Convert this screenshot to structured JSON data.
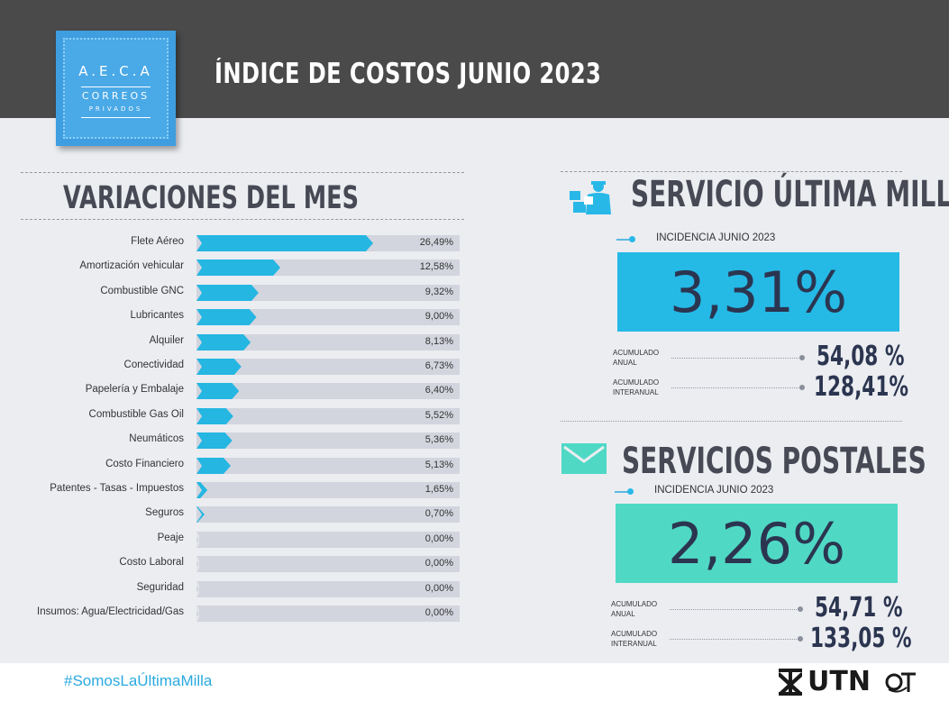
{
  "header": {
    "title": "ÍNDICE DE COSTOS JUNIO 2023",
    "logo": {
      "line1": "A.E.C.A",
      "line2": "CORREOS",
      "line3": "PRIVADOS"
    }
  },
  "variaciones": {
    "title": "VARIACIONES DEL MES",
    "rows": [
      {
        "label": "Flete Aéreo",
        "value": "26,49%",
        "pct": 26.49
      },
      {
        "label": "Amortización vehicular",
        "value": "12,58%",
        "pct": 12.58
      },
      {
        "label": "Combustible GNC",
        "value": "9,32%",
        "pct": 9.32
      },
      {
        "label": "Lubricantes",
        "value": "9,00%",
        "pct": 9.0
      },
      {
        "label": "Alquiler",
        "value": "8,13%",
        "pct": 8.13
      },
      {
        "label": "Conectividad",
        "value": "6,73%",
        "pct": 6.73
      },
      {
        "label": "Papelería y Embalaje",
        "value": "6,40%",
        "pct": 6.4
      },
      {
        "label": "Combustible Gas Oil",
        "value": "5,52%",
        "pct": 5.52
      },
      {
        "label": "Neumáticos",
        "value": "5,36%",
        "pct": 5.36
      },
      {
        "label": "Costo Financiero",
        "value": "5,13%",
        "pct": 5.13
      },
      {
        "label": "Patentes - Tasas - Impuestos",
        "value": "1,65%",
        "pct": 1.65
      },
      {
        "label": "Seguros",
        "value": "0,70%",
        "pct": 0.7
      },
      {
        "label": "Peaje",
        "value": "0,00%",
        "pct": 0.0
      },
      {
        "label": "Costo Laboral",
        "value": "0,00%",
        "pct": 0.0
      },
      {
        "label": "Seguridad",
        "value": "0,00%",
        "pct": 0.0
      },
      {
        "label": "Insumos: Agua/Electricidad/Gas",
        "value": "0,00%",
        "pct": 0.0
      }
    ]
  },
  "ultima_milla": {
    "title": "SERVICIO ÚLTIMA MILLA",
    "icon": "delivery-person-icon",
    "incidencia_label": "INCIDENCIA JUNIO 2023",
    "incidencia_value": "3,31%",
    "acumulado_anual_label": "ACUMULADO ANUAL",
    "acumulado_anual_value": "54,08 %",
    "acumulado_interanual_label": "ACUMULADO INTERANUAL",
    "acumulado_interanual_value": "128,41%",
    "color": "#25b9e6"
  },
  "postales": {
    "title": "SERVICIOS POSTALES",
    "icon": "envelope-icon",
    "incidencia_label": "INCIDENCIA JUNIO 2023",
    "incidencia_value": "2,26%",
    "acumulado_anual_label": "ACUMULADO ANUAL",
    "acumulado_anual_value": "54,71 %",
    "acumulado_interanual_label": "ACUMULADO INTERANUAL",
    "acumulado_interanual_value": "133,05 %",
    "color": "#4fd9c5"
  },
  "footer": {
    "hashtag": "#SomosLaÚltimaMilla",
    "brand": "UTN"
  }
}
